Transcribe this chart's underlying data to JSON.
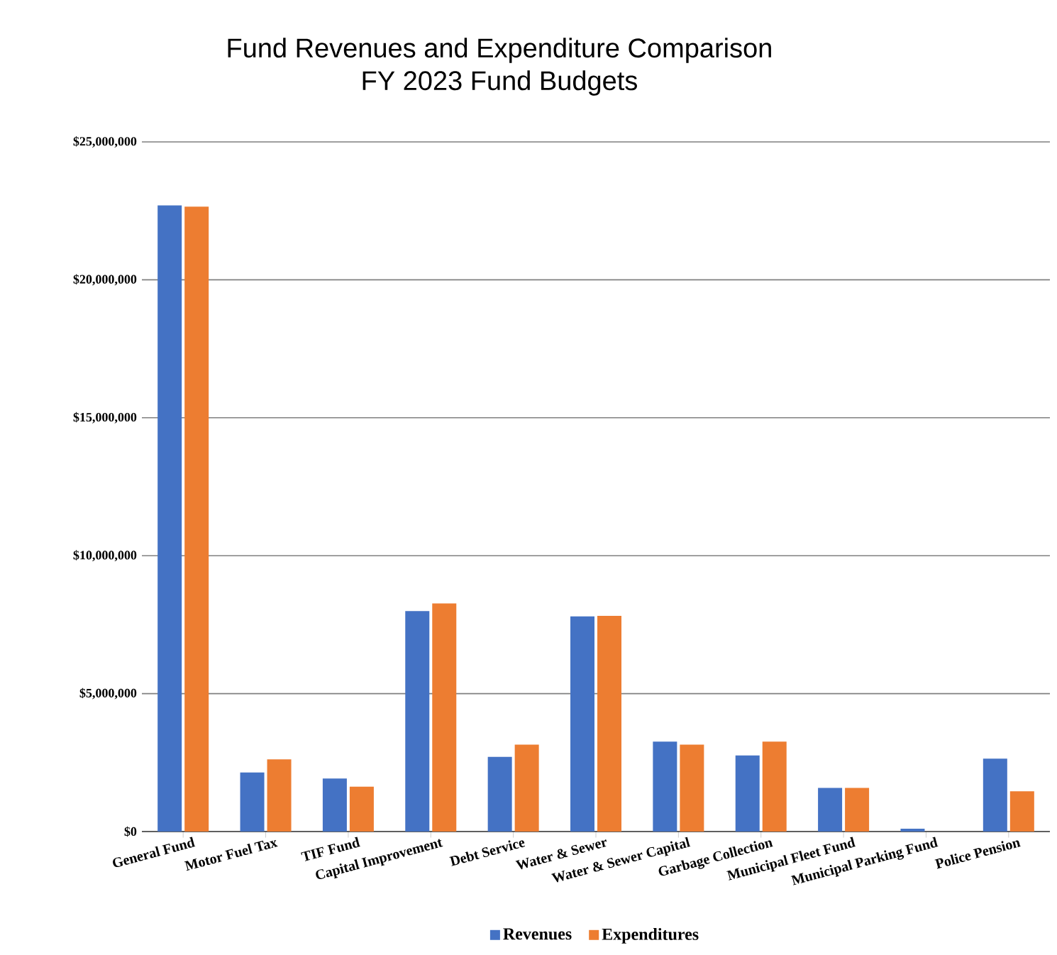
{
  "chart_data": {
    "type": "bar",
    "title": "Fund Revenues and Expenditure Comparison",
    "subtitle": "FY 2023 Fund Budgets",
    "categories": [
      "General Fund",
      "Motor Fuel Tax",
      "TIF Fund",
      "Capital Improvement",
      "Debt Service",
      "Water & Sewer",
      "Water & Sewer Capital",
      "Garbage Collection",
      "Municipal Fleet Fund",
      "Municipal Parking Fund",
      "Police Pension"
    ],
    "series": [
      {
        "name": "Revenues",
        "color": "#4472c4",
        "values": [
          22700000,
          2140000,
          1920000,
          7990000,
          2710000,
          7800000,
          3260000,
          2760000,
          1580000,
          100000,
          2640000
        ]
      },
      {
        "name": "Expenditures",
        "color": "#ed7d31",
        "values": [
          22650000,
          2620000,
          1630000,
          8270000,
          3150000,
          7820000,
          3150000,
          3260000,
          1580000,
          null,
          1460000
        ]
      }
    ],
    "ylim": [
      0,
      25000000
    ],
    "yticks": [
      {
        "value": 0,
        "label": "$0"
      },
      {
        "value": 5000000,
        "label": "$5,000,000"
      },
      {
        "value": 10000000,
        "label": "$10,000,000"
      },
      {
        "value": 15000000,
        "label": "$15,000,000"
      },
      {
        "value": 20000000,
        "label": "$20,000,000"
      },
      {
        "value": 25000000,
        "label": "$25,000,000"
      }
    ],
    "grid": "y",
    "legend": "bottom"
  }
}
